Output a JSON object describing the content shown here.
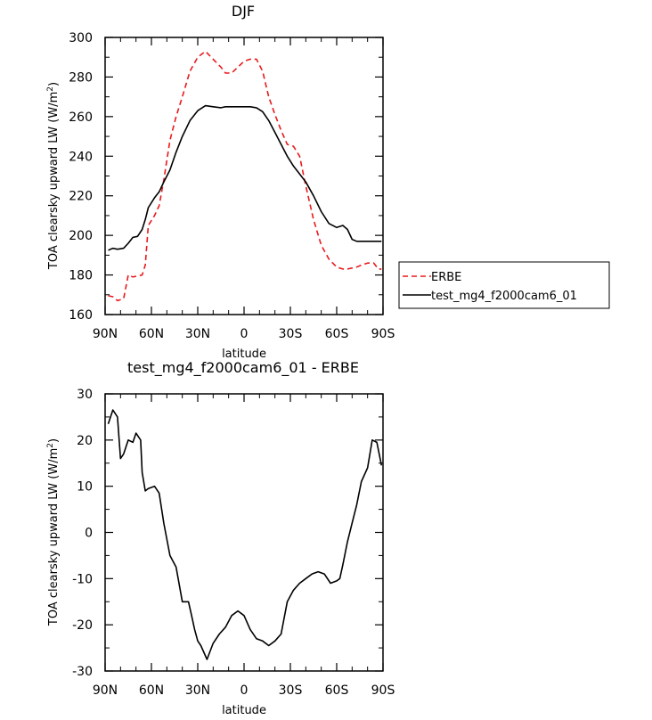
{
  "chart_data": [
    {
      "type": "line",
      "title": "DJF",
      "xlabel": "latitude",
      "ylabel": "TOA clearsky upward LW (W/m",
      "ylabel_superscript": "2",
      "ylabel_suffix": ")",
      "xlim": [
        90,
        -90
      ],
      "ylim": [
        160,
        300
      ],
      "xticks": [
        {
          "value": 90,
          "label": "90N"
        },
        {
          "value": 60,
          "label": "60N"
        },
        {
          "value": 30,
          "label": "30N"
        },
        {
          "value": 0,
          "label": "0"
        },
        {
          "value": -30,
          "label": "30S"
        },
        {
          "value": -60,
          "label": "60S"
        },
        {
          "value": -90,
          "label": "90S"
        }
      ],
      "yticks": [
        160,
        180,
        200,
        220,
        240,
        260,
        280,
        300
      ],
      "legend": {
        "position": "right",
        "entries": [
          "ERBE",
          "test_mg4_f2000cam6_01"
        ]
      },
      "x": [
        88,
        85,
        82,
        78,
        75,
        72,
        69,
        66,
        64,
        62,
        58,
        55,
        52,
        48,
        44,
        40,
        35,
        30,
        25,
        20,
        15,
        12,
        8,
        4,
        0,
        -4,
        -8,
        -12,
        -16,
        -20,
        -24,
        -28,
        -32,
        -36,
        -40,
        -45,
        -50,
        -55,
        -60,
        -64,
        -67,
        -70,
        -73,
        -76,
        -80,
        -84,
        -87,
        -89
      ],
      "series": [
        {
          "name": "ERBE",
          "color": "#e8191c",
          "dash": "dashed",
          "values": [
            169.5,
            169,
            167,
            168,
            180,
            179,
            179.5,
            180,
            185,
            205,
            210,
            215,
            228,
            248,
            260,
            270,
            283,
            290,
            293,
            289,
            285,
            282,
            282,
            285,
            288,
            289,
            289,
            283,
            270,
            261,
            253,
            246,
            245,
            240,
            225,
            208,
            195,
            188,
            184,
            183,
            183,
            183.5,
            184,
            185,
            186,
            186,
            183,
            183
          ]
        },
        {
          "name": "test_mg4_f2000cam6_01",
          "color": "#000000",
          "dash": "solid",
          "values": [
            192.5,
            193.5,
            193,
            193.5,
            196,
            199,
            199.5,
            203,
            208,
            214,
            219,
            222,
            227,
            233,
            242,
            250,
            258,
            263,
            265.5,
            265,
            264.5,
            265,
            265,
            265,
            265,
            265,
            264.5,
            262.5,
            258,
            252,
            246,
            240,
            235,
            231,
            227,
            220,
            212,
            206,
            204,
            205,
            203,
            198,
            197,
            197,
            197,
            197,
            197,
            197
          ]
        }
      ]
    },
    {
      "type": "line",
      "title": "test_mg4_f2000cam6_01 - ERBE",
      "xlabel": "latitude",
      "ylabel": "TOA clearsky upward LW (W/m",
      "ylabel_superscript": "2",
      "ylabel_suffix": ")",
      "xlim": [
        90,
        -90
      ],
      "ylim": [
        -30,
        30
      ],
      "xticks": [
        {
          "value": 90,
          "label": "90N"
        },
        {
          "value": 60,
          "label": "60N"
        },
        {
          "value": 30,
          "label": "30N"
        },
        {
          "value": 0,
          "label": "0"
        },
        {
          "value": -30,
          "label": "30S"
        },
        {
          "value": -60,
          "label": "60S"
        },
        {
          "value": -90,
          "label": "90S"
        }
      ],
      "yticks": [
        -30,
        -20,
        -10,
        0,
        10,
        20,
        30
      ],
      "x": [
        88,
        85,
        82,
        80,
        78,
        75,
        72,
        70,
        67,
        66,
        64,
        62,
        58,
        55,
        52,
        48,
        44,
        40,
        36,
        34,
        32,
        30,
        28,
        24,
        20,
        16,
        12,
        8,
        4,
        0,
        -4,
        -8,
        -12,
        -16,
        -20,
        -24,
        -28,
        -32,
        -36,
        -40,
        -44,
        -48,
        -52,
        -56,
        -60,
        -62,
        -64,
        -67,
        -70,
        -73,
        -76,
        -80,
        -83,
        -86,
        -89
      ],
      "series": [
        {
          "name": "test_mg4_f2000cam6_01 - ERBE",
          "color": "#000000",
          "dash": "solid",
          "values": [
            23.5,
            26.5,
            25,
            16,
            17,
            20,
            19.5,
            21.5,
            20,
            13,
            9,
            9.5,
            10,
            8.5,
            2,
            -5,
            -7.5,
            -15,
            -15,
            -18,
            -21,
            -23.5,
            -24.5,
            -27.5,
            -24,
            -22,
            -20.5,
            -18,
            -17,
            -18,
            -21,
            -23,
            -23.5,
            -24.5,
            -23.5,
            -22,
            -15,
            -12.5,
            -11,
            -10,
            -9,
            -8.5,
            -9,
            -11,
            -10.5,
            -10,
            -7,
            -2,
            2,
            6,
            11,
            14,
            20,
            19.5,
            14.5
          ]
        }
      ]
    }
  ]
}
